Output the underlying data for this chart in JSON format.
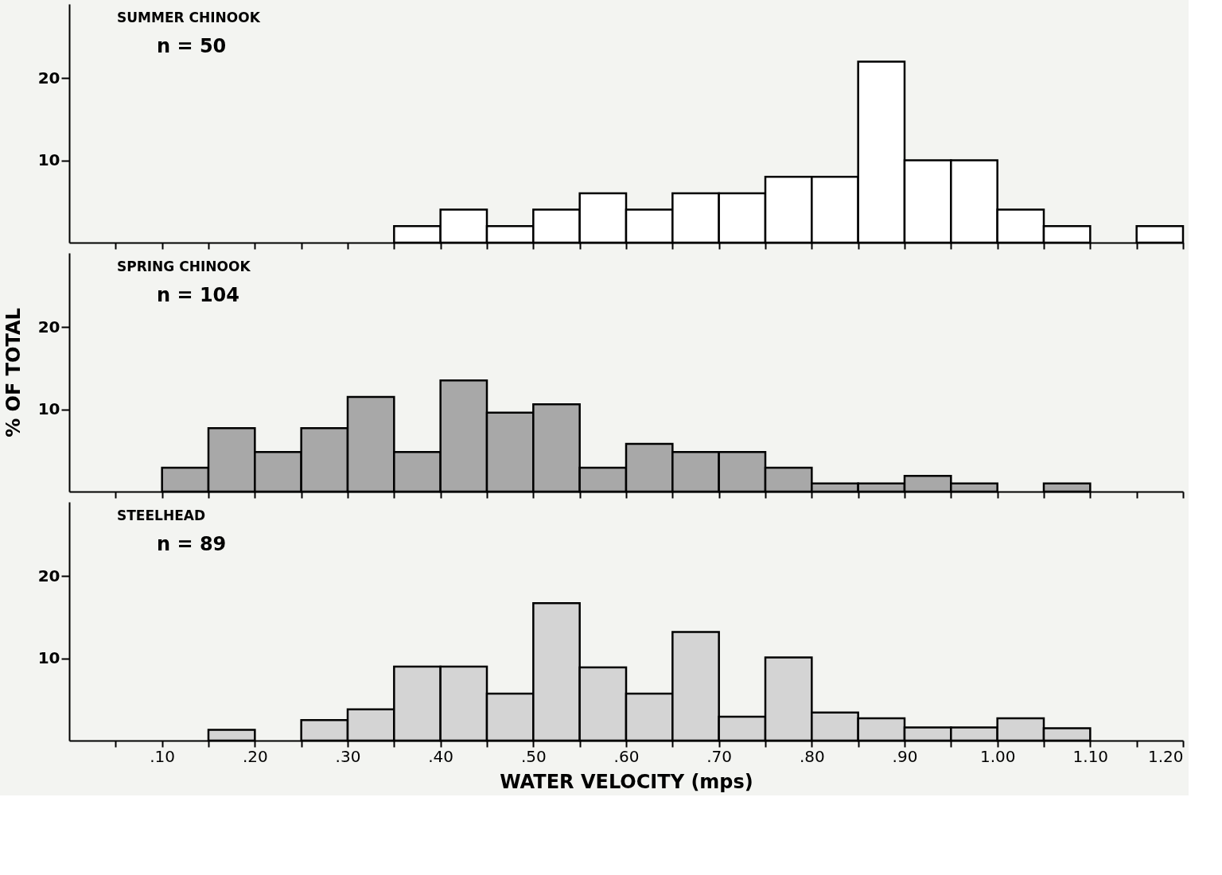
{
  "chart_data": [
    {
      "type": "histogram",
      "title": "SUMMER CHINOOK",
      "subtitle": "n = 50",
      "color": "#ffffff",
      "bins": [
        0.35,
        0.4,
        0.45,
        0.5,
        0.55,
        0.6,
        0.65,
        0.7,
        0.75,
        0.8,
        0.85,
        0.9,
        0.95,
        1.0,
        1.05,
        1.1,
        1.15,
        1.2
      ],
      "values": [
        2,
        4,
        2,
        4,
        6,
        4,
        6,
        6,
        8,
        8,
        22,
        10,
        10,
        4,
        2,
        0,
        2
      ],
      "xlim": [
        0,
        1.2
      ],
      "ylim": [
        0,
        29
      ],
      "yticks": [
        10,
        20
      ],
      "tick_labels": "y",
      "xticks": [
        {
          "value": 0.05,
          "label": null
        },
        {
          "value": 0.1,
          "label": null
        },
        {
          "value": 0.15,
          "label": null
        },
        {
          "value": 0.2,
          "label": null
        },
        {
          "value": 0.25,
          "label": null
        },
        {
          "value": 0.3,
          "label": null
        },
        {
          "value": 0.35,
          "label": null
        },
        {
          "value": 0.4,
          "label": null
        },
        {
          "value": 0.45,
          "label": null
        },
        {
          "value": 0.5,
          "label": null
        },
        {
          "value": 0.55,
          "label": null
        },
        {
          "value": 0.6,
          "label": null
        },
        {
          "value": 0.65,
          "label": null
        },
        {
          "value": 0.7,
          "label": null
        },
        {
          "value": 0.75,
          "label": null
        },
        {
          "value": 0.8,
          "label": null
        },
        {
          "value": 0.85,
          "label": null
        },
        {
          "value": 0.9,
          "label": null
        },
        {
          "value": 0.95,
          "label": null
        },
        {
          "value": 1.0,
          "label": null
        },
        {
          "value": 1.05,
          "label": null
        },
        {
          "value": 1.1,
          "label": null
        },
        {
          "value": 1.15,
          "label": null
        },
        {
          "value": 1.2,
          "label": null
        }
      ]
    },
    {
      "type": "histogram",
      "title": "SPRING CHINOOK",
      "subtitle": "n = 104",
      "ylabel": "% OF TOTAL",
      "color": "#a8a8a8",
      "bins": [
        0.1,
        0.15,
        0.2,
        0.25,
        0.3,
        0.35,
        0.4,
        0.45,
        0.5,
        0.55,
        0.6,
        0.65,
        0.7,
        0.75,
        0.8,
        0.85,
        0.9,
        0.95,
        1.0,
        1.05,
        1.1
      ],
      "values": [
        2.9,
        7.7,
        4.8,
        7.7,
        11.5,
        4.8,
        13.5,
        9.6,
        10.6,
        2.9,
        5.8,
        4.8,
        4.8,
        2.9,
        1.0,
        1.0,
        1.9,
        1.0,
        0,
        1.0
      ],
      "xlim": [
        0,
        1.2
      ],
      "ylim": [
        0,
        29
      ],
      "yticks": [
        10,
        20
      ],
      "tick_labels": "y",
      "xticks": [
        {
          "value": 0.05,
          "label": null
        },
        {
          "value": 0.1,
          "label": null
        },
        {
          "value": 0.15,
          "label": null
        },
        {
          "value": 0.2,
          "label": null
        },
        {
          "value": 0.25,
          "label": null
        },
        {
          "value": 0.3,
          "label": null
        },
        {
          "value": 0.35,
          "label": null
        },
        {
          "value": 0.4,
          "label": null
        },
        {
          "value": 0.45,
          "label": null
        },
        {
          "value": 0.5,
          "label": null
        },
        {
          "value": 0.55,
          "label": null
        },
        {
          "value": 0.6,
          "label": null
        },
        {
          "value": 0.65,
          "label": null
        },
        {
          "value": 0.7,
          "label": null
        },
        {
          "value": 0.75,
          "label": null
        },
        {
          "value": 0.8,
          "label": null
        },
        {
          "value": 0.85,
          "label": null
        },
        {
          "value": 0.9,
          "label": null
        },
        {
          "value": 0.95,
          "label": null
        },
        {
          "value": 1.0,
          "label": null
        },
        {
          "value": 1.05,
          "label": null
        },
        {
          "value": 1.1,
          "label": null
        },
        {
          "value": 1.15,
          "label": null
        },
        {
          "value": 1.2,
          "label": null
        }
      ]
    },
    {
      "type": "histogram",
      "title": "STEELHEAD",
      "subtitle": "n = 89",
      "xlabel": "WATER VELOCITY (mps)",
      "color": "#d4d4d4",
      "bins": [
        0.15,
        0.2,
        0.25,
        0.3,
        0.35,
        0.4,
        0.45,
        0.5,
        0.55,
        0.6,
        0.65,
        0.7,
        0.75,
        0.8,
        0.85,
        0.9,
        0.95,
        1.0,
        1.05,
        1.1
      ],
      "values": [
        1.3,
        0,
        2.5,
        3.8,
        9.0,
        9.0,
        5.7,
        16.7,
        8.9,
        5.7,
        13.2,
        2.9,
        10.1,
        3.4,
        2.7,
        1.6,
        1.6,
        2.7,
        1.5
      ],
      "xlim": [
        0,
        1.2
      ],
      "ylim": [
        0,
        29
      ],
      "yticks": [
        10,
        20
      ],
      "xticks": [
        {
          "value": 0.05,
          "label": null
        },
        {
          "value": 0.1,
          "label": ".10"
        },
        {
          "value": 0.15,
          "label": null
        },
        {
          "value": 0.2,
          "label": ".20"
        },
        {
          "value": 0.25,
          "label": null
        },
        {
          "value": 0.3,
          "label": ".30"
        },
        {
          "value": 0.35,
          "label": null
        },
        {
          "value": 0.4,
          "label": ".40"
        },
        {
          "value": 0.45,
          "label": null
        },
        {
          "value": 0.5,
          "label": ".50"
        },
        {
          "value": 0.55,
          "label": null
        },
        {
          "value": 0.6,
          "label": ".60"
        },
        {
          "value": 0.65,
          "label": null
        },
        {
          "value": 0.7,
          "label": ".70"
        },
        {
          "value": 0.75,
          "label": null
        },
        {
          "value": 0.8,
          "label": ".80"
        },
        {
          "value": 0.85,
          "label": null
        },
        {
          "value": 0.9,
          "label": ".90"
        },
        {
          "value": 0.95,
          "label": null
        },
        {
          "value": 1.0,
          "label": "1.00"
        },
        {
          "value": 1.05,
          "label": null
        },
        {
          "value": 1.1,
          "label": "1.10"
        },
        {
          "value": 1.15,
          "label": null
        },
        {
          "value": 1.2,
          "label": "1.20"
        }
      ]
    }
  ]
}
